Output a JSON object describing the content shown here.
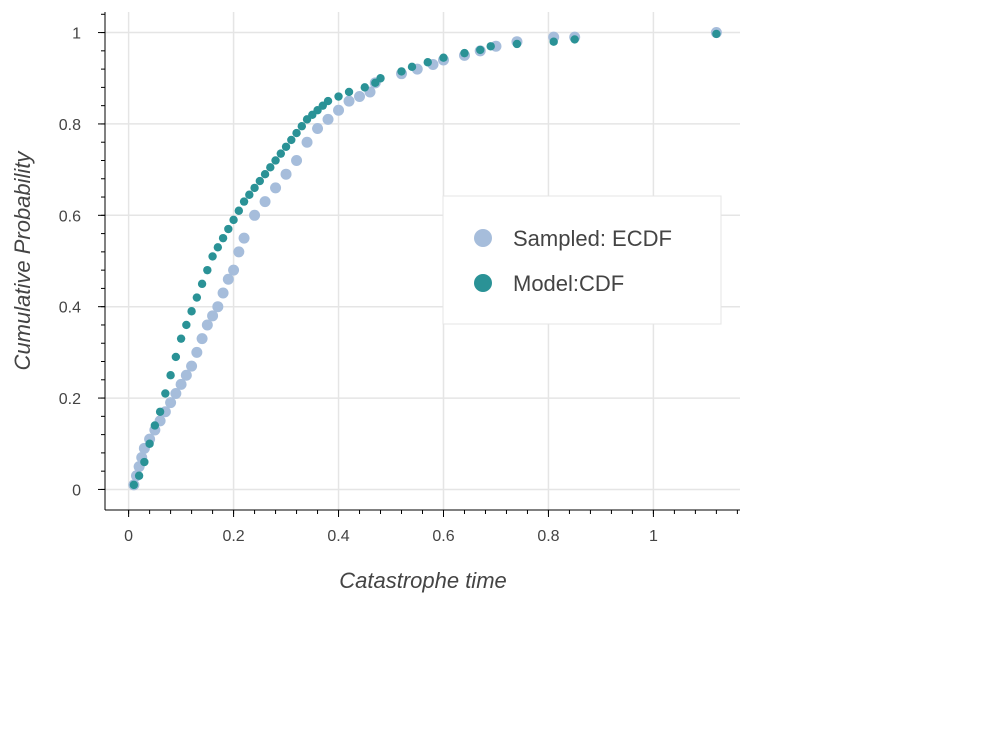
{
  "chart_data": {
    "type": "scatter",
    "title": "",
    "xlabel": "Catastrophe time",
    "ylabel": "Cumulative Probability",
    "xlim": [
      -0.045,
      1.165
    ],
    "ylim": [
      -0.045,
      1.045
    ],
    "x_ticks": [
      0,
      0.2,
      0.4,
      0.6,
      0.8,
      1
    ],
    "x_tick_labels": [
      "0",
      "0.2",
      "0.4",
      "0.6",
      "0.8",
      "1"
    ],
    "y_ticks": [
      0,
      0.2,
      0.4,
      0.6,
      0.8,
      1
    ],
    "y_tick_labels": [
      "0",
      "0.2",
      "0.4",
      "0.6",
      "0.8",
      "1"
    ],
    "grid": true,
    "legend_position": "center-right",
    "series": [
      {
        "name": "Sampled: ECDF",
        "color": "#a6bddb",
        "points": [
          [
            0.01,
            0.01
          ],
          [
            0.015,
            0.03
          ],
          [
            0.02,
            0.05
          ],
          [
            0.025,
            0.07
          ],
          [
            0.03,
            0.09
          ],
          [
            0.04,
            0.11
          ],
          [
            0.05,
            0.13
          ],
          [
            0.06,
            0.15
          ],
          [
            0.07,
            0.17
          ],
          [
            0.08,
            0.19
          ],
          [
            0.09,
            0.21
          ],
          [
            0.1,
            0.23
          ],
          [
            0.11,
            0.25
          ],
          [
            0.12,
            0.27
          ],
          [
            0.13,
            0.3
          ],
          [
            0.14,
            0.33
          ],
          [
            0.15,
            0.36
          ],
          [
            0.16,
            0.38
          ],
          [
            0.17,
            0.4
          ],
          [
            0.18,
            0.43
          ],
          [
            0.19,
            0.46
          ],
          [
            0.2,
            0.48
          ],
          [
            0.21,
            0.52
          ],
          [
            0.22,
            0.55
          ],
          [
            0.24,
            0.6
          ],
          [
            0.26,
            0.63
          ],
          [
            0.28,
            0.66
          ],
          [
            0.3,
            0.69
          ],
          [
            0.32,
            0.72
          ],
          [
            0.34,
            0.76
          ],
          [
            0.36,
            0.79
          ],
          [
            0.38,
            0.81
          ],
          [
            0.4,
            0.83
          ],
          [
            0.42,
            0.85
          ],
          [
            0.44,
            0.86
          ],
          [
            0.46,
            0.87
          ],
          [
            0.47,
            0.89
          ],
          [
            0.52,
            0.91
          ],
          [
            0.55,
            0.92
          ],
          [
            0.58,
            0.93
          ],
          [
            0.6,
            0.94
          ],
          [
            0.64,
            0.95
          ],
          [
            0.67,
            0.96
          ],
          [
            0.7,
            0.97
          ],
          [
            0.74,
            0.98
          ],
          [
            0.81,
            0.99
          ],
          [
            0.85,
            0.99
          ],
          [
            1.12,
            1.0
          ]
        ]
      },
      {
        "name": "Model:CDF",
        "color": "#2a9296",
        "points": [
          [
            0.01,
            0.01
          ],
          [
            0.02,
            0.03
          ],
          [
            0.03,
            0.06
          ],
          [
            0.04,
            0.1
          ],
          [
            0.05,
            0.14
          ],
          [
            0.06,
            0.17
          ],
          [
            0.07,
            0.21
          ],
          [
            0.08,
            0.25
          ],
          [
            0.09,
            0.29
          ],
          [
            0.1,
            0.33
          ],
          [
            0.11,
            0.36
          ],
          [
            0.12,
            0.39
          ],
          [
            0.13,
            0.42
          ],
          [
            0.14,
            0.45
          ],
          [
            0.15,
            0.48
          ],
          [
            0.16,
            0.51
          ],
          [
            0.17,
            0.53
          ],
          [
            0.18,
            0.55
          ],
          [
            0.19,
            0.57
          ],
          [
            0.2,
            0.59
          ],
          [
            0.21,
            0.61
          ],
          [
            0.22,
            0.63
          ],
          [
            0.23,
            0.645
          ],
          [
            0.24,
            0.66
          ],
          [
            0.25,
            0.675
          ],
          [
            0.26,
            0.69
          ],
          [
            0.27,
            0.705
          ],
          [
            0.28,
            0.72
          ],
          [
            0.29,
            0.735
          ],
          [
            0.3,
            0.75
          ],
          [
            0.31,
            0.765
          ],
          [
            0.32,
            0.78
          ],
          [
            0.33,
            0.795
          ],
          [
            0.34,
            0.81
          ],
          [
            0.35,
            0.82
          ],
          [
            0.36,
            0.83
          ],
          [
            0.37,
            0.84
          ],
          [
            0.38,
            0.85
          ],
          [
            0.4,
            0.86
          ],
          [
            0.42,
            0.87
          ],
          [
            0.45,
            0.88
          ],
          [
            0.47,
            0.89
          ],
          [
            0.48,
            0.9
          ],
          [
            0.52,
            0.915
          ],
          [
            0.54,
            0.925
          ],
          [
            0.57,
            0.935
          ],
          [
            0.6,
            0.945
          ],
          [
            0.64,
            0.955
          ],
          [
            0.67,
            0.962
          ],
          [
            0.69,
            0.97
          ],
          [
            0.74,
            0.975
          ],
          [
            0.81,
            0.98
          ],
          [
            0.85,
            0.985
          ],
          [
            1.12,
            0.997
          ]
        ]
      }
    ]
  }
}
